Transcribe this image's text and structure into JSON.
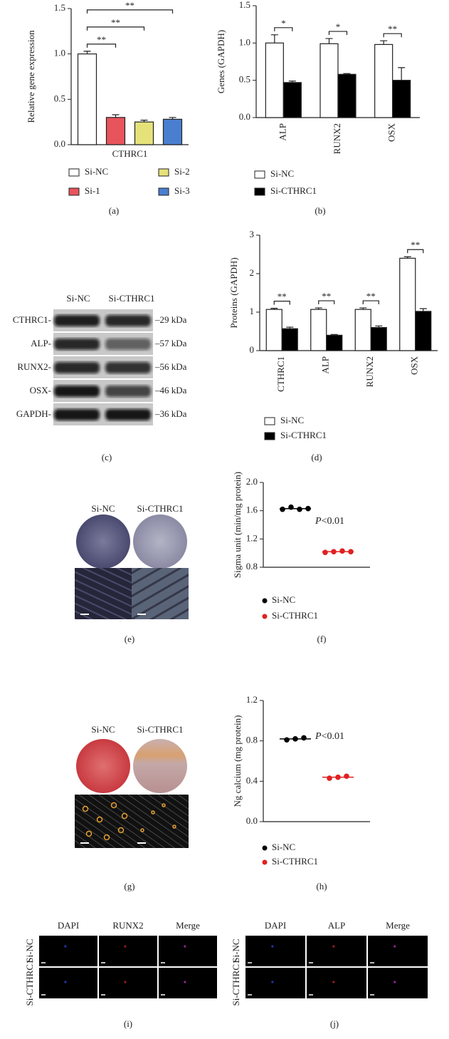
{
  "chart_data": [
    {
      "type": "bar",
      "panel_label": "(a)",
      "y_label": "Relative gene expression",
      "categories": [
        "CTHRC1"
      ],
      "series": [
        {
          "name": "Si-NC",
          "color": "#ffffff",
          "values": [
            1.0
          ],
          "errors": [
            0.03
          ]
        },
        {
          "name": "Si-1",
          "color": "#e8545c",
          "values": [
            0.3
          ],
          "errors": [
            0.03
          ]
        },
        {
          "name": "Si-2",
          "color": "#e6e27a",
          "values": [
            0.25
          ],
          "errors": [
            0.02
          ]
        },
        {
          "name": "Si-3",
          "color": "#4a7fd0",
          "values": [
            0.28
          ],
          "errors": [
            0.02
          ]
        }
      ],
      "significance": [
        "**",
        "**",
        "**"
      ],
      "ylim": [
        0,
        1.5
      ],
      "yticks": [
        {
          "value": 0,
          "label": "0.0"
        },
        {
          "value": 0.5,
          "label": "0.5"
        },
        {
          "value": 1,
          "label": "1.0"
        },
        {
          "value": 1.5,
          "label": "1.5"
        }
      ]
    },
    {
      "type": "bar",
      "panel_label": "(b)",
      "y_label": "Genes (GAPDH)",
      "categories": [
        "ALP",
        "RUNX2",
        "OSX"
      ],
      "series": [
        {
          "name": "Si-NC",
          "color": "#ffffff",
          "values": [
            1.0,
            0.99,
            0.98
          ],
          "errors": [
            0.11,
            0.07,
            0.05
          ]
        },
        {
          "name": "Si-CTHRC1",
          "color": "#000000",
          "values": [
            0.47,
            0.58,
            0.5
          ],
          "errors": [
            0.02,
            0.01,
            0.17
          ]
        }
      ],
      "significance": [
        "*",
        "*",
        "**"
      ],
      "ylim": [
        0,
        1.5
      ],
      "yticks": [
        {
          "value": 0,
          "label": "0.0"
        },
        {
          "value": 0.5,
          "label": "0.5"
        },
        {
          "value": 1,
          "label": "1.0"
        },
        {
          "value": 1.5,
          "label": "1.5"
        }
      ]
    },
    {
      "type": "bar",
      "panel_label": "(d)",
      "y_label": "Proteins (GAPDH)",
      "categories": [
        "CTHRC1",
        "ALP",
        "RUNX2",
        "OSX"
      ],
      "series": [
        {
          "name": "Si-NC",
          "color": "#ffffff",
          "values": [
            1.07,
            1.07,
            1.07,
            2.4
          ],
          "errors": [
            0.03,
            0.04,
            0.04,
            0.04
          ]
        },
        {
          "name": "Si-CTHRC1",
          "color": "#000000",
          "values": [
            0.57,
            0.4,
            0.6,
            1.02
          ],
          "errors": [
            0.04,
            0.02,
            0.04,
            0.07
          ]
        }
      ],
      "significance": [
        "**",
        "**",
        "**",
        "**"
      ],
      "ylim": [
        0,
        3
      ],
      "yticks": [
        0,
        1,
        2,
        3
      ]
    },
    {
      "type": "dot",
      "panel_label": "(f)",
      "y_label": "Sigma unit (min/mg protein)",
      "annotation": "P<0.01",
      "series": [
        {
          "name": "Si-NC",
          "color": "#000000",
          "values": [
            1.62,
            1.65,
            1.62,
            1.63
          ],
          "mean": 1.63
        },
        {
          "name": "Si-CTHRC1",
          "color": "#e02020",
          "values": [
            1.01,
            1.02,
            1.03,
            1.02
          ],
          "mean": 1.02
        }
      ],
      "ylim": [
        0.8,
        2.0
      ],
      "yticks": [
        {
          "value": 0.8,
          "label": "0.8"
        },
        {
          "value": 1.2,
          "label": "1.2"
        },
        {
          "value": 1.6,
          "label": "1.6"
        },
        {
          "value": 2.0,
          "label": "2.0"
        }
      ]
    },
    {
      "type": "dot",
      "panel_label": "(h)",
      "y_label": "Ng calcium (mg protein)",
      "annotation": "P<0.01",
      "series": [
        {
          "name": "Si-NC",
          "color": "#000000",
          "values": [
            0.81,
            0.82,
            0.83
          ],
          "mean": 0.82
        },
        {
          "name": "Si-CTHRC1",
          "color": "#e02020",
          "values": [
            0.43,
            0.44,
            0.45
          ],
          "mean": 0.44
        }
      ],
      "ylim": [
        0,
        1.2
      ],
      "yticks": [
        {
          "value": 0,
          "label": "0.0"
        },
        {
          "value": 0.4,
          "label": "0.4"
        },
        {
          "value": 0.8,
          "label": "0.8"
        },
        {
          "value": 1.2,
          "label": "1.2"
        }
      ]
    }
  ],
  "blot": {
    "panel_label": "(c)",
    "columns": [
      "Si-NC",
      "Si-CTHRC1"
    ],
    "rows": [
      {
        "protein": "CTHRC1-",
        "size": "–29 kDa"
      },
      {
        "protein": "ALP-",
        "size": "–57 kDa"
      },
      {
        "protein": "RUNX2-",
        "size": "–56 kDa"
      },
      {
        "protein": "OSX-",
        "size": "–46 kDa"
      },
      {
        "protein": "GAPDH-",
        "size": "–36 kDa"
      }
    ]
  },
  "staining": [
    {
      "panel_label": "(e)",
      "columns": [
        "Si-NC",
        "Si-CTHRC1"
      ]
    },
    {
      "panel_label": "(g)",
      "columns": [
        "Si-NC",
        "Si-CTHRC1"
      ]
    }
  ],
  "fluorescence": [
    {
      "panel_label": "(i)",
      "columns": [
        "DAPI",
        "RUNX2",
        "Merge"
      ],
      "rows": [
        "Si-NC",
        "Si-CTHRC1"
      ]
    },
    {
      "panel_label": "(j)",
      "columns": [
        "DAPI",
        "ALP",
        "Merge"
      ],
      "rows": [
        "Si-NC",
        "Si-CTHRC1"
      ]
    }
  ]
}
